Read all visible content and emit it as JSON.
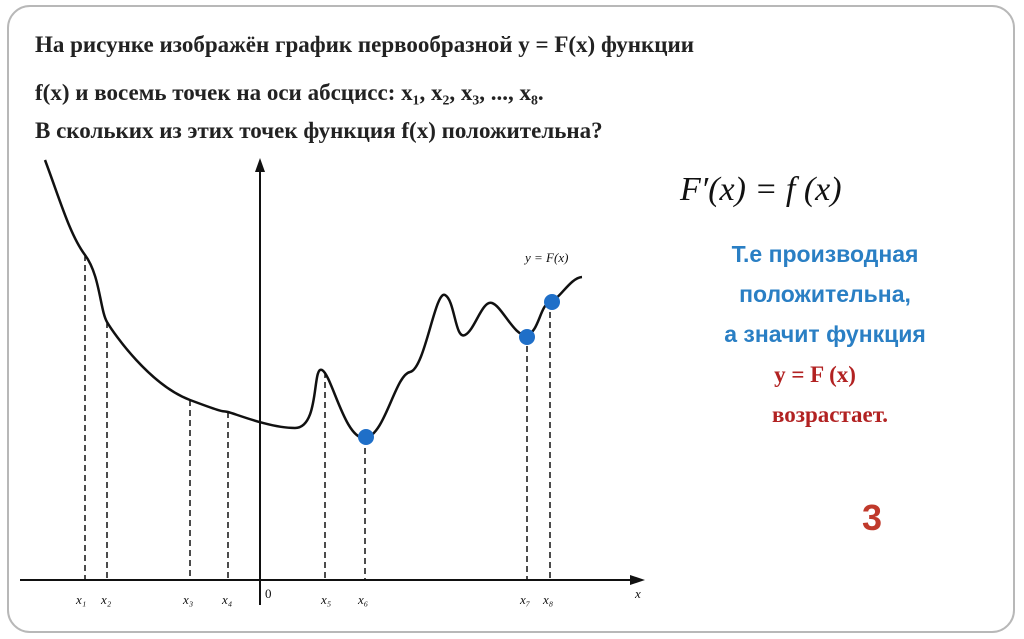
{
  "problem": {
    "lines": [
      "На рисунке изображён график первообразной y = F(x) функции",
      "f(x) и восемь точек    на оси абсцисс: x₁, x₂, x₃, ..., x₈.",
      "В скольких из этих точек функция f(x) положительна?"
    ]
  },
  "graph": {
    "curve_label": "y = F(x)",
    "origin_label": "0",
    "axis_label": "x",
    "point_labels": [
      "x₁",
      "x₂",
      "x₃",
      "x₄",
      "x₅",
      "x₆",
      "x₇",
      "x₈"
    ]
  },
  "formula": "F′(x) = f (x)",
  "explanation": {
    "blue_lines": [
      "Т.е производная",
      "положительна,",
      "а значит    функция"
    ],
    "red_lines": [
      "y = F (x)",
      "возрастает."
    ]
  },
  "answer": "3"
}
